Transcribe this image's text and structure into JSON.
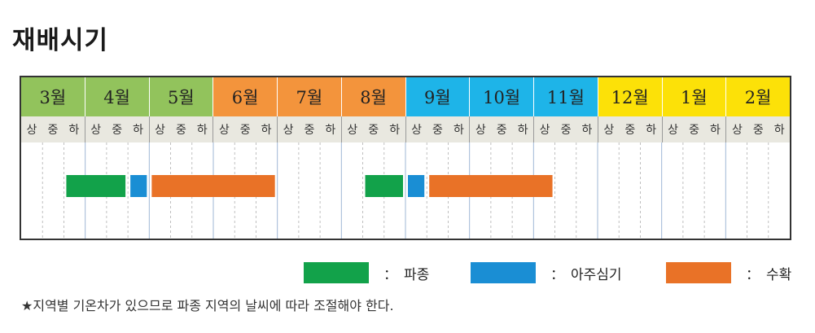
{
  "title": "재배시기",
  "colors": {
    "spring_month": "#92c35c",
    "summer_month": "#f3943c",
    "fall_month": "#1eb4e8",
    "winter_month": "#fce108",
    "sowing": "#12a24a",
    "transplanting": "#1a8ed4",
    "harvest": "#e97227"
  },
  "chart_data": {
    "type": "gantt",
    "months": [
      {
        "label": "3월",
        "season": "spring"
      },
      {
        "label": "4월",
        "season": "spring"
      },
      {
        "label": "5월",
        "season": "spring"
      },
      {
        "label": "6월",
        "season": "summer"
      },
      {
        "label": "7월",
        "season": "summer"
      },
      {
        "label": "8월",
        "season": "summer"
      },
      {
        "label": "9월",
        "season": "fall"
      },
      {
        "label": "10월",
        "season": "fall"
      },
      {
        "label": "11월",
        "season": "fall"
      },
      {
        "label": "12월",
        "season": "winter"
      },
      {
        "label": "1월",
        "season": "winter"
      },
      {
        "label": "2월",
        "season": "winter"
      }
    ],
    "periods": [
      "상",
      "중",
      "하"
    ],
    "legend": [
      {
        "key": "sowing",
        "label": "파종"
      },
      {
        "key": "transplanting",
        "label": "아주심기"
      },
      {
        "key": "harvest",
        "label": "수확"
      }
    ],
    "bars": [
      {
        "activity": "sowing",
        "start_month": "3월",
        "start_period": "하",
        "end_month": "4월",
        "end_period": "중"
      },
      {
        "activity": "transplanting",
        "start_month": "4월",
        "start_period": "하",
        "end_month": "4월",
        "end_period": "하"
      },
      {
        "activity": "harvest",
        "start_month": "5월",
        "start_period": "상",
        "end_month": "6월",
        "end_period": "하"
      },
      {
        "activity": "sowing",
        "start_month": "8월",
        "start_period": "중",
        "end_month": "8월",
        "end_period": "하"
      },
      {
        "activity": "transplanting",
        "start_month": "9월",
        "start_period": "상",
        "end_month": "9월",
        "end_period": "상"
      },
      {
        "activity": "harvest",
        "start_month": "9월",
        "start_period": "중",
        "end_month": "11월",
        "end_period": "상"
      }
    ]
  },
  "legend_colon": "：",
  "note": "★지역별 기온차가 있으므로 파종 지역의 날씨에 따라 조절해야 한다."
}
